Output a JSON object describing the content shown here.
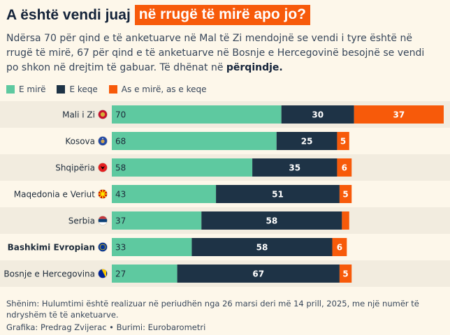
{
  "header": {
    "title_plain": "A është vendi juaj",
    "title_highlight": "në rrugë të mirë apo jo?",
    "subtitle_text": "Ndërsa 70 për qind e të anketuarve në Mal të Zi mendojnë se vendi i tyre është në rrugë të mirë, 67 për qind e të anketuarve në Bosnje e Hercegovinë besojnë se vendi po shkon në drejtim të gabuar. Të dhënat në ",
    "subtitle_bold": "përqindje."
  },
  "colors": {
    "good": "#5ec9a0",
    "bad": "#1e3346",
    "neither": "#f75a0a",
    "background": "#fdf7ea",
    "row_stripe": "#f2ecdf"
  },
  "chart_data": {
    "type": "bar",
    "orientation": "horizontal",
    "stacked": true,
    "categories": [
      "Mali i Zi",
      "Kosova",
      "Shqipëria",
      "Maqedonia e Veriut",
      "Serbia",
      "Bashkimi Evropian",
      "Bosnje e Hercegovina"
    ],
    "category_flag_icons": [
      "montenegro-flag-icon",
      "kosovo-flag-icon",
      "albania-flag-icon",
      "north-macedonia-flag-icon",
      "serbia-flag-icon",
      "eu-flag-icon",
      "bosnia-flag-icon"
    ],
    "bold_categories": [
      "Bashkimi Evropian"
    ],
    "series": [
      {
        "name": "E mirë",
        "values": [
          70,
          68,
          58,
          43,
          37,
          33,
          27
        ],
        "labels": [
          "70",
          "68",
          "58",
          "43",
          "37",
          "33",
          "27"
        ]
      },
      {
        "name": "E keqe",
        "values": [
          30,
          25,
          35,
          51,
          58,
          58,
          67
        ],
        "labels": [
          "30",
          "25",
          "35",
          "51",
          "58",
          "58",
          "67"
        ]
      },
      {
        "name": "As e mirë, as e keqe",
        "values": [
          37,
          5,
          6,
          5,
          3,
          6,
          5
        ],
        "labels": [
          "37",
          "5",
          "6",
          "5",
          "",
          "6",
          "5"
        ]
      }
    ],
    "xlim": [
      0,
      137
    ],
    "grid": false,
    "legend_position": "top-left"
  },
  "footer": {
    "note": "Shënim: Hulumtimi është realizuar në periudhën nga 26 marsi deri më 14 prill, 2025, me një numër të ndryshëm të të anketuarve.",
    "credit": "Grafika: Predrag Zvijerac • Burimi: Eurobarometri"
  }
}
